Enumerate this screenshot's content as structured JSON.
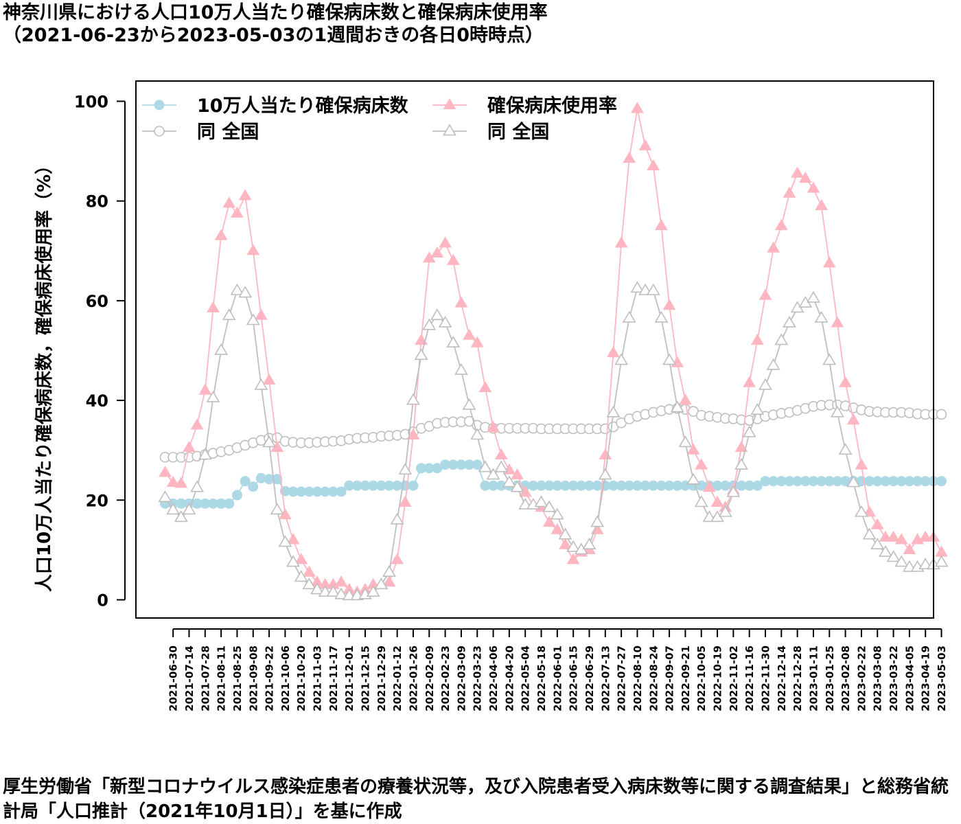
{
  "title_line1": "神奈川県における人口10万人当たり確保病床数と確保病床使用率",
  "title_line2": "（2021-06-23から2023-05-03の1週間おきの各日0時時点）",
  "footer": "厚生労働省「新型コロナウイルス感染症患者の療養状況等，及び入院患者受入病床数等に関する調査結果」と総務省統計局「人口推計（2021年10月1日）」を基に作成",
  "chart_data": {
    "type": "line",
    "ylabel": "人口10万人当たり確保病床数，確保病床使用率（%）",
    "ylim": [
      0,
      100
    ],
    "yticks": [
      0,
      20,
      40,
      60,
      80,
      100
    ],
    "grid": false,
    "legend_position": "top-left",
    "x": [
      "2021-06-23",
      "2021-06-30",
      "2021-07-07",
      "2021-07-14",
      "2021-07-21",
      "2021-07-28",
      "2021-08-04",
      "2021-08-11",
      "2021-08-18",
      "2021-08-25",
      "2021-09-01",
      "2021-09-08",
      "2021-09-15",
      "2021-09-22",
      "2021-09-29",
      "2021-10-06",
      "2021-10-13",
      "2021-10-20",
      "2021-10-27",
      "2021-11-03",
      "2021-11-10",
      "2021-11-17",
      "2021-11-24",
      "2021-12-01",
      "2021-12-08",
      "2021-12-15",
      "2021-12-22",
      "2021-12-29",
      "2022-01-05",
      "2022-01-12",
      "2022-01-19",
      "2022-01-26",
      "2022-02-02",
      "2022-02-09",
      "2022-02-16",
      "2022-02-23",
      "2022-03-02",
      "2022-03-09",
      "2022-03-16",
      "2022-03-23",
      "2022-03-30",
      "2022-04-06",
      "2022-04-13",
      "2022-04-20",
      "2022-04-27",
      "2022-05-04",
      "2022-05-11",
      "2022-05-18",
      "2022-05-25",
      "2022-06-01",
      "2022-06-08",
      "2022-06-15",
      "2022-06-22",
      "2022-06-29",
      "2022-07-06",
      "2022-07-13",
      "2022-07-20",
      "2022-07-27",
      "2022-08-03",
      "2022-08-10",
      "2022-08-17",
      "2022-08-24",
      "2022-08-31",
      "2022-09-07",
      "2022-09-14",
      "2022-09-21",
      "2022-09-28",
      "2022-10-05",
      "2022-10-12",
      "2022-10-19",
      "2022-10-26",
      "2022-11-02",
      "2022-11-09",
      "2022-11-16",
      "2022-11-23",
      "2022-11-30",
      "2022-12-07",
      "2022-12-14",
      "2022-12-21",
      "2022-12-28",
      "2023-01-04",
      "2023-01-11",
      "2023-01-18",
      "2023-01-25",
      "2023-02-01",
      "2023-02-08",
      "2023-02-15",
      "2023-02-22",
      "2023-03-01",
      "2023-03-08",
      "2023-03-15",
      "2023-03-22",
      "2023-03-29",
      "2023-04-05",
      "2023-04-12",
      "2023-04-19",
      "2023-04-26",
      "2023-05-03"
    ],
    "xtick_labels": [
      "2021-06-30",
      "2021-07-14",
      "2021-07-28",
      "2021-08-11",
      "2021-08-25",
      "2021-09-08",
      "2021-09-22",
      "2021-10-06",
      "2021-10-20",
      "2021-11-03",
      "2021-11-17",
      "2021-12-01",
      "2021-12-15",
      "2021-12-29",
      "2022-01-12",
      "2022-01-26",
      "2022-02-09",
      "2022-02-23",
      "2022-03-09",
      "2022-03-23",
      "2022-04-06",
      "2022-04-20",
      "2022-05-04",
      "2022-05-18",
      "2022-06-01",
      "2022-06-15",
      "2022-06-29",
      "2022-07-13",
      "2022-07-27",
      "2022-08-10",
      "2022-08-24",
      "2022-09-07",
      "2022-09-21",
      "2022-10-05",
      "2022-10-19",
      "2022-11-02",
      "2022-11-16",
      "2022-11-30",
      "2022-12-14",
      "2022-12-28",
      "2023-01-11",
      "2023-01-25",
      "2023-02-08",
      "2023-02-22",
      "2023-03-08",
      "2023-03-22",
      "2023-04-05",
      "2023-04-19",
      "2023-05-03"
    ],
    "series": [
      {
        "name": "10万人当たり確保病床数",
        "color": "#add8e6",
        "marker": "filled-circle",
        "values": [
          19.3,
          19.3,
          19.3,
          19.3,
          19.3,
          19.3,
          19.3,
          19.3,
          19.3,
          21.0,
          23.8,
          22.7,
          24.4,
          24.2,
          24.2,
          21.8,
          21.7,
          21.7,
          21.7,
          21.7,
          21.7,
          21.7,
          21.7,
          22.9,
          22.9,
          22.9,
          22.9,
          22.9,
          22.9,
          22.9,
          22.9,
          22.9,
          26.4,
          26.4,
          26.4,
          27.1,
          27.1,
          27.1,
          27.1,
          27.1,
          22.9,
          22.9,
          22.9,
          22.9,
          22.9,
          22.9,
          22.9,
          22.9,
          22.9,
          22.9,
          22.9,
          22.9,
          22.9,
          22.9,
          22.9,
          22.9,
          22.9,
          22.9,
          22.9,
          22.9,
          22.9,
          22.9,
          22.9,
          22.9,
          22.9,
          22.9,
          22.9,
          22.9,
          22.9,
          22.9,
          22.9,
          22.9,
          22.9,
          22.9,
          22.9,
          23.8,
          23.8,
          23.8,
          23.8,
          23.8,
          23.8,
          23.8,
          23.8,
          23.8,
          23.8,
          23.8,
          23.8,
          23.8,
          23.8,
          23.8,
          23.8,
          23.8,
          23.8,
          23.8,
          23.8,
          23.8,
          23.8,
          23.8
        ]
      },
      {
        "name": "同 全国",
        "color": "#bebebe",
        "marker": "open-circle",
        "values": [
          28.6,
          28.6,
          28.6,
          28.6,
          28.8,
          29.1,
          29.4,
          29.7,
          30.0,
          30.5,
          31.0,
          31.5,
          32.0,
          32.4,
          32.5,
          31.8,
          31.6,
          31.5,
          31.5,
          31.6,
          31.7,
          31.8,
          31.9,
          32.2,
          32.4,
          32.5,
          32.6,
          32.8,
          32.9,
          33.0,
          33.2,
          33.7,
          34.4,
          34.8,
          35.4,
          35.6,
          35.7,
          35.7,
          35.8,
          35.0,
          34.6,
          34.4,
          34.4,
          34.4,
          34.4,
          34.4,
          34.4,
          34.3,
          34.3,
          34.3,
          34.3,
          34.3,
          34.3,
          34.3,
          34.3,
          34.3,
          34.7,
          35.5,
          36.3,
          36.8,
          37.2,
          37.6,
          37.9,
          38.2,
          38.4,
          38.2,
          37.8,
          37.0,
          36.8,
          36.6,
          36.4,
          36.3,
          36.1,
          36.0,
          36.3,
          36.8,
          37.1,
          37.4,
          37.6,
          38.0,
          38.4,
          38.8,
          39.0,
          39.1,
          39.1,
          38.9,
          38.5,
          38.1,
          37.8,
          37.7,
          37.6,
          37.6,
          37.6,
          37.5,
          37.3,
          37.2,
          37.2,
          37.2
        ]
      },
      {
        "name": "確保病床使用率",
        "color": "#ffb6c1",
        "marker": "filled-triangle",
        "values": [
          25.5,
          23.5,
          23.3,
          30.5,
          35.0,
          42.0,
          58.5,
          73.0,
          79.5,
          77.5,
          81.0,
          70.0,
          57.0,
          44.0,
          30.5,
          17.0,
          12.0,
          8.0,
          5.5,
          3.5,
          3.0,
          3.0,
          3.5,
          2.0,
          1.5,
          2.0,
          3.0,
          3.0,
          3.5,
          8.0,
          19.5,
          33.0,
          52.0,
          68.5,
          69.5,
          71.5,
          68.0,
          59.5,
          53.0,
          51.5,
          42.5,
          34.5,
          29.0,
          26.0,
          25.0,
          21.5,
          19.0,
          18.5,
          15.5,
          14.0,
          11.0,
          8.0,
          9.5,
          10.0,
          14.0,
          29.0,
          49.5,
          71.5,
          88.5,
          98.5,
          91.0,
          87.0,
          75.0,
          59.0,
          47.5,
          40.0,
          30.0,
          27.0,
          22.5,
          19.5,
          18.5,
          22.0,
          30.5,
          43.5,
          52.0,
          61.0,
          70.5,
          75.0,
          81.5,
          85.5,
          84.5,
          82.5,
          79.0,
          67.5,
          55.5,
          43.5,
          36.0,
          27.0,
          17.5,
          15.0,
          12.5,
          12.5,
          12.0,
          10.0,
          12.0,
          12.5,
          12.5,
          9.5
        ]
      },
      {
        "name": "同 全国",
        "color": "#bebebe",
        "marker": "open-triangle",
        "values": [
          20.5,
          18.0,
          16.5,
          18.0,
          22.5,
          29.0,
          40.5,
          50.0,
          57.0,
          62.0,
          61.5,
          56.0,
          43.0,
          31.5,
          18.0,
          11.5,
          7.5,
          4.5,
          3.0,
          2.0,
          1.5,
          1.5,
          1.0,
          0.8,
          0.8,
          1.0,
          1.5,
          3.0,
          5.5,
          16.0,
          26.0,
          40.0,
          49.0,
          55.0,
          57.0,
          55.5,
          51.5,
          46.0,
          39.0,
          33.0,
          26.5,
          25.0,
          26.5,
          23.5,
          22.5,
          19.0,
          19.0,
          19.5,
          18.5,
          17.0,
          13.0,
          10.5,
          10.0,
          11.0,
          15.5,
          25.0,
          37.5,
          48.0,
          56.5,
          62.5,
          62.0,
          62.0,
          56.5,
          48.0,
          38.5,
          31.5,
          24.0,
          19.5,
          16.5,
          16.5,
          17.5,
          21.5,
          27.0,
          33.5,
          38.0,
          43.0,
          47.0,
          52.0,
          55.5,
          58.5,
          59.5,
          60.5,
          56.5,
          48.0,
          37.5,
          30.0,
          23.5,
          17.5,
          13.0,
          11.0,
          9.5,
          8.5,
          7.5,
          6.5,
          6.5,
          7.0,
          7.0,
          7.5
        ]
      }
    ]
  }
}
